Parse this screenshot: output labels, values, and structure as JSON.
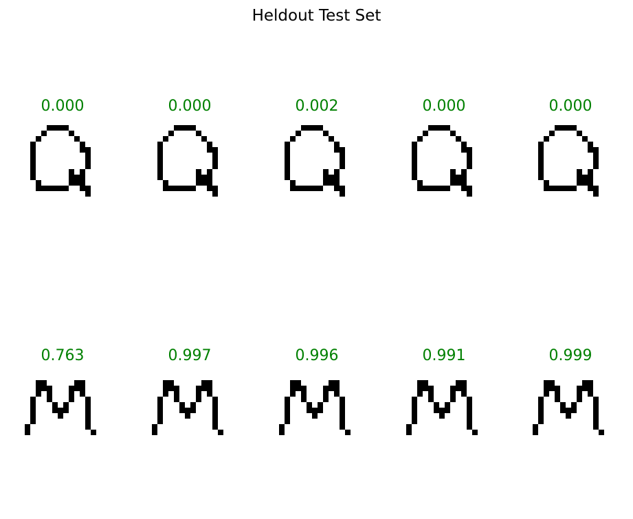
{
  "chart_data": {
    "type": "image-grid",
    "title": "Heldout Test Set",
    "rows": 2,
    "cols": 5,
    "score_color": "#008000",
    "samples": [
      {
        "row": 0,
        "col": 0,
        "score": "0.000",
        "letter": "Q"
      },
      {
        "row": 0,
        "col": 1,
        "score": "0.000",
        "letter": "Q"
      },
      {
        "row": 0,
        "col": 2,
        "score": "0.002",
        "letter": "Q"
      },
      {
        "row": 0,
        "col": 3,
        "score": "0.000",
        "letter": "Q"
      },
      {
        "row": 0,
        "col": 4,
        "score": "0.000",
        "letter": "Q"
      },
      {
        "row": 1,
        "col": 0,
        "score": "0.763",
        "letter": "M"
      },
      {
        "row": 1,
        "col": 1,
        "score": "0.997",
        "letter": "M"
      },
      {
        "row": 1,
        "col": 2,
        "score": "0.996",
        "letter": "M"
      },
      {
        "row": 1,
        "col": 3,
        "score": "0.991",
        "letter": "M"
      },
      {
        "row": 1,
        "col": 4,
        "score": "0.999",
        "letter": "M"
      }
    ]
  }
}
